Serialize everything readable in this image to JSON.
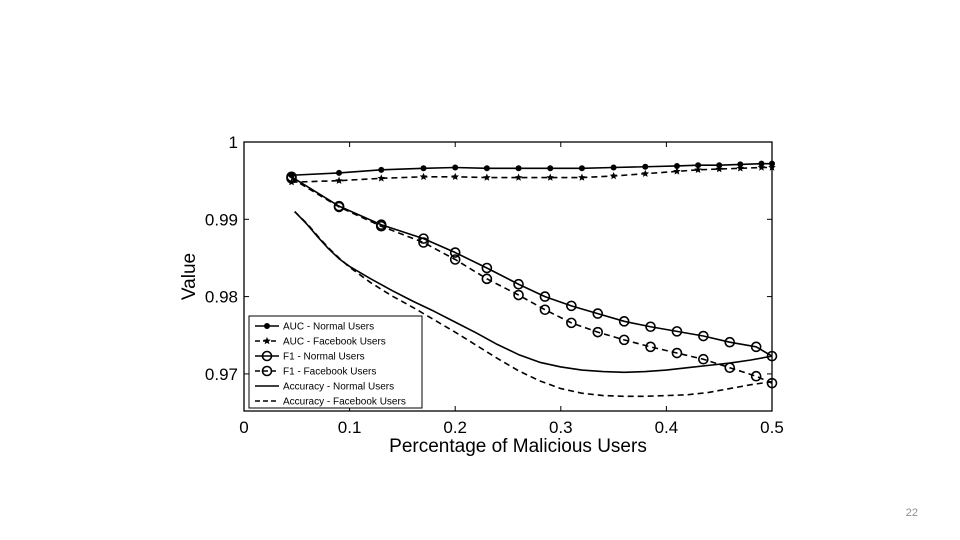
{
  "slide": {
    "page_number": "22"
  },
  "chart_data": {
    "type": "line",
    "title": "",
    "xlabel": "Percentage of Malicious Users",
    "ylabel": "Value",
    "xlim": [
      0,
      0.5
    ],
    "ylim": [
      0.9652,
      1.0
    ],
    "xticks": [
      0,
      0.1,
      0.2,
      0.3,
      0.4,
      0.5
    ],
    "xtick_labels": [
      "0",
      "0.1",
      "0.2",
      "0.3",
      "0.4",
      "0.5"
    ],
    "yticks": [
      0.97,
      0.98,
      0.99,
      1.0
    ],
    "ytick_labels": [
      "0.97",
      "0.98",
      "0.99",
      "1"
    ],
    "grid": false,
    "legend_position": "bottom-left",
    "series": [
      {
        "name": "AUC - Normal Users",
        "style": "solid",
        "marker": "dot",
        "x": [
          0.045,
          0.09,
          0.13,
          0.17,
          0.2,
          0.23,
          0.26,
          0.29,
          0.32,
          0.35,
          0.38,
          0.41,
          0.43,
          0.45,
          0.47,
          0.49,
          0.5
        ],
        "y": [
          0.9957,
          0.996,
          0.9964,
          0.9966,
          0.9967,
          0.9966,
          0.9966,
          0.9966,
          0.9966,
          0.9967,
          0.9968,
          0.9969,
          0.997,
          0.997,
          0.9971,
          0.9972,
          0.9972
        ]
      },
      {
        "name": "AUC - Facebook Users",
        "style": "dashed",
        "marker": "star",
        "x": [
          0.045,
          0.09,
          0.13,
          0.17,
          0.2,
          0.23,
          0.26,
          0.29,
          0.32,
          0.35,
          0.38,
          0.41,
          0.43,
          0.45,
          0.47,
          0.49,
          0.5
        ],
        "y": [
          0.9948,
          0.995,
          0.9953,
          0.9955,
          0.9955,
          0.9954,
          0.9954,
          0.9954,
          0.9954,
          0.9956,
          0.9959,
          0.9962,
          0.9964,
          0.9965,
          0.9966,
          0.9967,
          0.9967
        ]
      },
      {
        "name": "F1 - Normal Users",
        "style": "solid",
        "marker": "circle",
        "x": [
          0.045,
          0.09,
          0.13,
          0.17,
          0.2,
          0.23,
          0.26,
          0.285,
          0.31,
          0.335,
          0.36,
          0.385,
          0.41,
          0.435,
          0.46,
          0.485,
          0.5
        ],
        "y": [
          0.9955,
          0.9917,
          0.9893,
          0.9875,
          0.9857,
          0.9837,
          0.9816,
          0.98,
          0.9788,
          0.9778,
          0.9768,
          0.9761,
          0.9755,
          0.9749,
          0.9741,
          0.9735,
          0.9723
        ]
      },
      {
        "name": "F1 - Facebook Users",
        "style": "dashed",
        "marker": "circle",
        "x": [
          0.045,
          0.09,
          0.13,
          0.17,
          0.2,
          0.23,
          0.26,
          0.285,
          0.31,
          0.335,
          0.36,
          0.385,
          0.41,
          0.435,
          0.46,
          0.485,
          0.5
        ],
        "y": [
          0.9953,
          0.9916,
          0.9891,
          0.987,
          0.9848,
          0.9823,
          0.9802,
          0.9783,
          0.9766,
          0.9754,
          0.9744,
          0.9735,
          0.9727,
          0.9719,
          0.9708,
          0.9697,
          0.9688
        ]
      },
      {
        "name": "Accuracy - Normal Users",
        "style": "solid",
        "marker": "none",
        "x": [
          0.048,
          0.06,
          0.07,
          0.08,
          0.09,
          0.1,
          0.12,
          0.14,
          0.16,
          0.18,
          0.2,
          0.22,
          0.24,
          0.26,
          0.28,
          0.3,
          0.32,
          0.34,
          0.36,
          0.38,
          0.4,
          0.42,
          0.44,
          0.46,
          0.48,
          0.5
        ],
        "y": [
          0.991,
          0.9893,
          0.9877,
          0.9862,
          0.9849,
          0.9839,
          0.9823,
          0.9808,
          0.9794,
          0.9781,
          0.9767,
          0.9753,
          0.9738,
          0.9725,
          0.9715,
          0.9709,
          0.9705,
          0.9703,
          0.9702,
          0.9703,
          0.9705,
          0.9708,
          0.9711,
          0.9714,
          0.9718,
          0.9723
        ]
      },
      {
        "name": "Accuracy - Facebook Users",
        "style": "dashed",
        "marker": "none",
        "x": [
          0.048,
          0.06,
          0.07,
          0.08,
          0.09,
          0.1,
          0.12,
          0.14,
          0.16,
          0.18,
          0.2,
          0.22,
          0.24,
          0.26,
          0.28,
          0.3,
          0.32,
          0.34,
          0.36,
          0.38,
          0.4,
          0.42,
          0.44,
          0.46,
          0.48,
          0.5
        ],
        "y": [
          0.991,
          0.9894,
          0.9878,
          0.9863,
          0.985,
          0.9838,
          0.9818,
          0.9801,
          0.9786,
          0.977,
          0.9754,
          0.9737,
          0.972,
          0.9704,
          0.9691,
          0.9681,
          0.9675,
          0.9672,
          0.9671,
          0.9671,
          0.9672,
          0.9673,
          0.9676,
          0.9681,
          0.9686,
          0.969
        ]
      }
    ]
  }
}
